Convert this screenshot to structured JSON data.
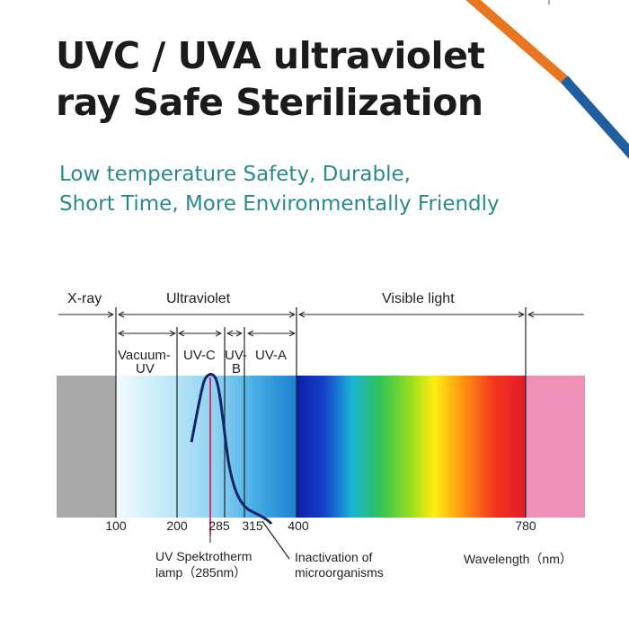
{
  "title_lines": [
    "UVC / UVA ultraviolet",
    "ray Safe Sterilization"
  ],
  "subtitle_lines": [
    "Low temperature Safety, Durable,",
    "Short Time, More Environmentally Friendly"
  ],
  "colors": {
    "title": "#1b1b1b",
    "subtitle": "#2a8a8a",
    "corner_orange": "#e8761e",
    "corner_blue": "#1f5fa0",
    "xray_band": "#a9a9a9",
    "infrared_band": "#ee8fb5",
    "peak_line": "#d6336c",
    "curve": "#14246a"
  },
  "spectrum": {
    "region_labels": {
      "xray": "X-ray",
      "ultraviolet": "Ultraviolet",
      "visible": "Visible light"
    },
    "sub_labels": {
      "vacuum_uv_1": "Vacuum-",
      "vacuum_uv_2": "UV",
      "uvc": "UV-C",
      "uvb_1": "UV-",
      "uvb_2": "B",
      "uva": "UV-A"
    },
    "ticks": [
      "100",
      "200",
      "285",
      "315",
      "400",
      "780"
    ],
    "annotations": {
      "lamp_1": "UV Spektrotherm",
      "lamp_2": "lamp（285nm）",
      "inactivation_1": "Inactivation of",
      "inactivation_2": "microorganisms",
      "wavelength": "Wavelength（nm）"
    }
  }
}
